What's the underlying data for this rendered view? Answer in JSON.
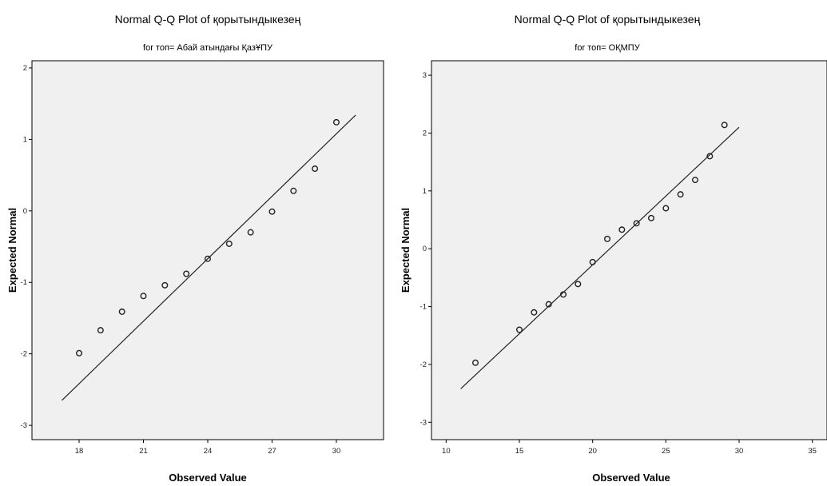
{
  "chart_data": [
    {
      "type": "scatter",
      "title": "Normal Q-Q Plot of қорытындыкезең",
      "subtitle": "for топ= Абай атындағы ҚазҰПУ",
      "xlabel": "Observed Value",
      "ylabel": "Expected Normal",
      "xlim": [
        15.8,
        32.2
      ],
      "ylim": [
        -3.2,
        2.1
      ],
      "xticks": [
        18,
        21,
        24,
        27,
        30
      ],
      "yticks": [
        -3,
        -2,
        -1,
        0,
        1,
        2
      ],
      "tick_labels_x": [
        "18",
        "21",
        "24",
        "27",
        "30"
      ],
      "tick_labels_y": [
        "-3",
        "-2",
        "-1",
        "0",
        "1",
        "2"
      ],
      "points": [
        {
          "x": 18,
          "y": -1.99
        },
        {
          "x": 19,
          "y": -1.67
        },
        {
          "x": 20,
          "y": -1.41
        },
        {
          "x": 21,
          "y": -1.19
        },
        {
          "x": 22,
          "y": -1.04
        },
        {
          "x": 23,
          "y": -0.88
        },
        {
          "x": 24,
          "y": -0.67
        },
        {
          "x": 25,
          "y": -0.46
        },
        {
          "x": 26,
          "y": -0.3
        },
        {
          "x": 27,
          "y": -0.01
        },
        {
          "x": 28,
          "y": 0.28
        },
        {
          "x": 29,
          "y": 0.59
        },
        {
          "x": 30,
          "y": 1.24
        }
      ],
      "reference_line": [
        {
          "x": 17.2,
          "y": -2.65
        },
        {
          "x": 30.9,
          "y": 1.34
        }
      ],
      "grid": false
    },
    {
      "type": "scatter",
      "title": "Normal Q-Q Plot of қорытындыкезең",
      "subtitle": "for топ= ОҚМПУ",
      "xlabel": "Observed Value",
      "ylabel": "Expected Normal",
      "xlim": [
        9.0,
        36.0
      ],
      "ylim": [
        -3.3,
        3.25
      ],
      "xticks": [
        10,
        15,
        20,
        25,
        30,
        35
      ],
      "yticks": [
        -3,
        -2,
        -1,
        0,
        1,
        2,
        3
      ],
      "tick_labels_x": [
        "10",
        "15",
        "20",
        "25",
        "30",
        "35"
      ],
      "tick_labels_y": [
        "-3",
        "-2",
        "-1",
        "0",
        "1",
        "2",
        "3"
      ],
      "points": [
        {
          "x": 12,
          "y": -1.97
        },
        {
          "x": 15,
          "y": -1.4
        },
        {
          "x": 16,
          "y": -1.1
        },
        {
          "x": 17,
          "y": -0.96
        },
        {
          "x": 18,
          "y": -0.79
        },
        {
          "x": 19,
          "y": -0.61
        },
        {
          "x": 20,
          "y": -0.23
        },
        {
          "x": 21,
          "y": 0.17
        },
        {
          "x": 22,
          "y": 0.33
        },
        {
          "x": 23,
          "y": 0.44
        },
        {
          "x": 24,
          "y": 0.53
        },
        {
          "x": 25,
          "y": 0.7
        },
        {
          "x": 26,
          "y": 0.94
        },
        {
          "x": 27,
          "y": 1.19
        },
        {
          "x": 28,
          "y": 1.6
        },
        {
          "x": 29,
          "y": 2.14
        }
      ],
      "reference_line": [
        {
          "x": 11.0,
          "y": -2.42
        },
        {
          "x": 30.0,
          "y": 2.1
        }
      ],
      "grid": false
    }
  ]
}
